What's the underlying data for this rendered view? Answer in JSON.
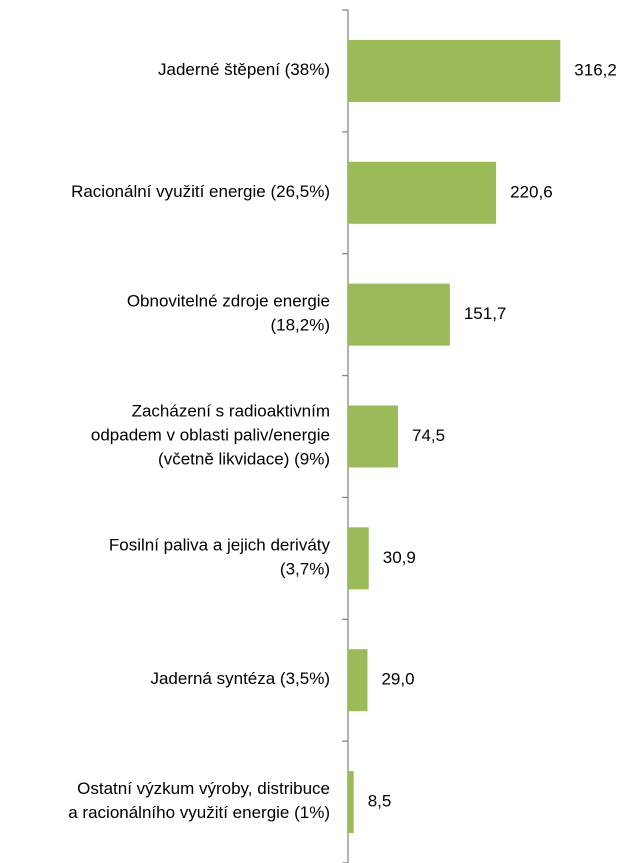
{
  "chart_data": {
    "type": "barh",
    "categories": [
      "Jaderné štěpení (38%)",
      "Racionální využití energie (26,5%)",
      "Obnovitelné zdroje energie\n(18,2%)",
      "Zacházení s radioaktivním\nodpadem v oblasti paliv/energie\n(včetně likvidace) (9%)",
      "Fosilní paliva a jejich deriváty\n(3,7%)",
      "Jaderná syntéza (3,5%)",
      "Ostatní výzkum výroby, distribuce\na racionálního využití energie (1%)"
    ],
    "values": [
      316.2,
      220.6,
      151.7,
      74.5,
      30.9,
      29.0,
      8.5
    ],
    "value_labels": [
      "316,2",
      "220,6",
      "151,7",
      "74,5",
      "30,9",
      "29,0",
      "8,5"
    ],
    "color": "#9bbb59",
    "xlim": [
      0,
      350
    ]
  }
}
